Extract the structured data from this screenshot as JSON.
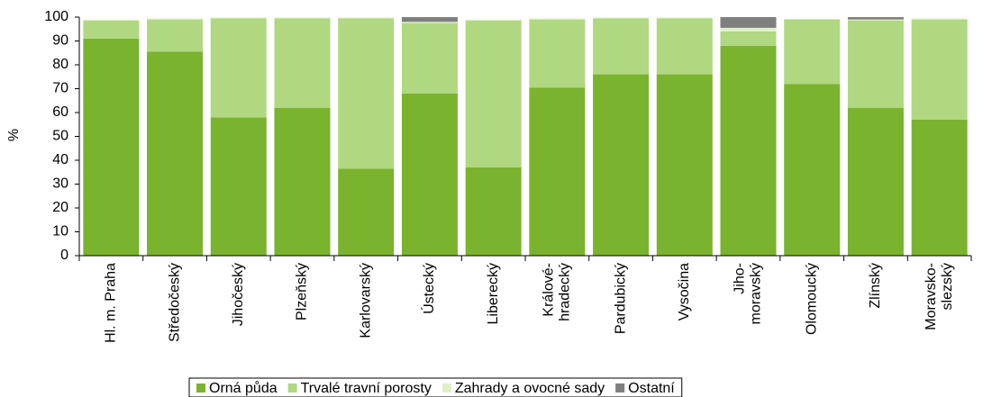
{
  "chart_data": {
    "type": "stacked-bar",
    "y_label": "%",
    "categories": [
      [
        "Hl. m. Praha"
      ],
      [
        "Středočeský"
      ],
      [
        "Jihočeský"
      ],
      [
        "Plzeňský"
      ],
      [
        "Karlovarský"
      ],
      [
        "Ústecký"
      ],
      [
        "Liberecký"
      ],
      [
        "Králové-",
        "hradecký"
      ],
      [
        "Pardubický"
      ],
      [
        "Vysočina"
      ],
      [
        "Jiho-",
        "moravský"
      ],
      [
        "Olomoucký"
      ],
      [
        "Zlínský"
      ],
      [
        "Moravsko-",
        "slezský"
      ]
    ],
    "series": [
      {
        "name": "Orná půda",
        "color": "#7ab32e",
        "values": [
          91,
          85.5,
          58,
          62,
          36.5,
          68,
          37,
          70.5,
          76,
          76,
          88,
          72,
          62,
          57
        ]
      },
      {
        "name": "Trvalé travní porosty",
        "color": "#b0d880",
        "values": [
          7.5,
          13.5,
          41.5,
          37.5,
          63,
          29.5,
          61.5,
          28.5,
          23.5,
          23.5,
          6,
          27,
          36.5,
          42
        ]
      },
      {
        "name": "Zahrady a ovocné sady",
        "color": "#dff0c8",
        "values": [
          0.5,
          0.5,
          0.3,
          0.3,
          0.3,
          0.5,
          0.5,
          0.5,
          0.3,
          0.3,
          1.5,
          0.3,
          0.5,
          0.5
        ]
      },
      {
        "name": "Ostatní",
        "color": "#7f7f7f",
        "values": [
          0,
          0,
          0,
          0,
          0,
          2,
          0,
          0,
          0,
          0,
          4.5,
          0,
          1,
          0
        ]
      }
    ],
    "ylim": [
      0,
      100
    ],
    "yticks": [
      0,
      10,
      20,
      30,
      40,
      50,
      60,
      70,
      80,
      90,
      100
    ],
    "legend": "bottom"
  }
}
